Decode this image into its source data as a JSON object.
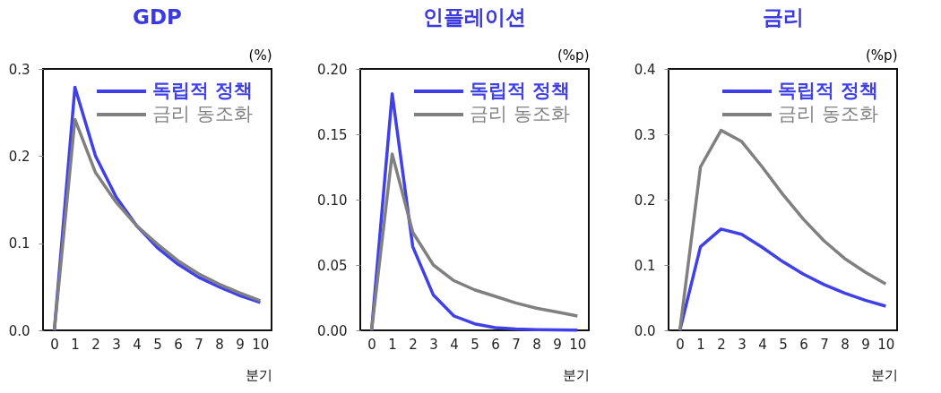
{
  "chart_data": [
    {
      "type": "line",
      "title": "GDP",
      "ylabel": "(%)",
      "xlabel": "분기",
      "categories": [
        "0",
        "1",
        "2",
        "3",
        "4",
        "5",
        "6",
        "7",
        "8",
        "9",
        "10"
      ],
      "ylim": [
        0,
        0.3
      ],
      "yticks": [
        {
          "value": 0,
          "label": "0.0"
        },
        0.1,
        0.2,
        0.3
      ],
      "legend": "top right",
      "grid": false,
      "series": [
        {
          "name": "독립적 정책",
          "color": "#4040e8",
          "values": [
            0,
            0.279,
            0.2,
            0.153,
            0.12,
            0.095,
            0.076,
            0.061,
            0.05,
            0.04,
            0.032
          ]
        },
        {
          "name": "금리 동조화",
          "color": "#808080",
          "values": [
            0,
            0.242,
            0.181,
            0.147,
            0.12,
            0.099,
            0.08,
            0.065,
            0.053,
            0.043,
            0.034
          ]
        }
      ]
    },
    {
      "type": "line",
      "title": "인플레이션",
      "ylabel": "(%p)",
      "xlabel": "분기",
      "categories": [
        "0",
        "1",
        "2",
        "3",
        "4",
        "5",
        "6",
        "7",
        "8",
        "9",
        "10"
      ],
      "ylim": [
        0,
        0.2
      ],
      "yticks": [
        {
          "value": 0,
          "label": "0.00"
        },
        0.05,
        {
          "value": 0.1,
          "label": "0.10"
        },
        0.15,
        {
          "value": 0.2,
          "label": "0.20"
        }
      ],
      "legend": "top right",
      "grid": false,
      "series": [
        {
          "name": "독립적 정책",
          "color": "#4040e8",
          "values": [
            0,
            0.181,
            0.064,
            0.027,
            0.011,
            0.005,
            0.002,
            0.001,
            0.0005,
            0.0003,
            0.0002
          ]
        },
        {
          "name": "금리 동조화",
          "color": "#808080",
          "values": [
            0,
            0.135,
            0.075,
            0.05,
            0.038,
            0.031,
            0.026,
            0.021,
            0.017,
            0.014,
            0.011
          ]
        }
      ]
    },
    {
      "type": "line",
      "title": "금리",
      "ylabel": "(%p)",
      "xlabel": "분기",
      "categories": [
        "0",
        "1",
        "2",
        "3",
        "4",
        "5",
        "6",
        "7",
        "8",
        "9",
        "10"
      ],
      "ylim": [
        0,
        0.4
      ],
      "yticks": [
        {
          "value": 0,
          "label": "0.0"
        },
        0.1,
        0.2,
        0.3,
        0.4
      ],
      "legend": "top right",
      "grid": false,
      "series": [
        {
          "name": "독립적 정책",
          "color": "#4040e8",
          "values": [
            0,
            0.128,
            0.155,
            0.147,
            0.127,
            0.105,
            0.086,
            0.07,
            0.057,
            0.046,
            0.037
          ]
        },
        {
          "name": "금리 동조화",
          "color": "#808080",
          "values": [
            0,
            0.25,
            0.306,
            0.289,
            0.25,
            0.208,
            0.17,
            0.137,
            0.11,
            0.089,
            0.071
          ]
        }
      ]
    }
  ]
}
